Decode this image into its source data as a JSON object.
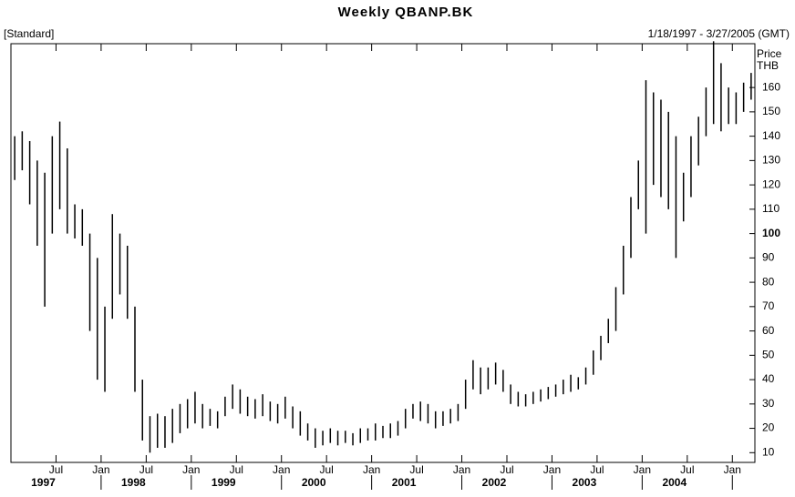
{
  "chart_data": {
    "type": "hl",
    "title": "Weekly QBANP.BK",
    "subtitle": "[Standard]",
    "date_range": "1/18/1997 - 3/27/2005 (GMT)",
    "y_label_1": "Price",
    "y_label_2": "THB",
    "color": "#000000",
    "x": [
      "1997-01",
      "1997-02",
      "1997-03",
      "1997-04",
      "1997-05",
      "1997-06",
      "1997-07",
      "1997-08",
      "1997-09",
      "1997-10",
      "1997-11",
      "1997-12",
      "1998-01",
      "1998-02",
      "1998-03",
      "1998-04",
      "1998-05",
      "1998-06",
      "1998-07",
      "1998-08",
      "1998-09",
      "1998-10",
      "1998-11",
      "1998-12",
      "1999-01",
      "1999-02",
      "1999-03",
      "1999-04",
      "1999-05",
      "1999-06",
      "1999-07",
      "1999-08",
      "1999-09",
      "1999-10",
      "1999-11",
      "1999-12",
      "2000-01",
      "2000-02",
      "2000-03",
      "2000-04",
      "2000-05",
      "2000-06",
      "2000-07",
      "2000-08",
      "2000-09",
      "2000-10",
      "2000-11",
      "2000-12",
      "2001-01",
      "2001-02",
      "2001-03",
      "2001-04",
      "2001-05",
      "2001-06",
      "2001-07",
      "2001-08",
      "2001-09",
      "2001-10",
      "2001-11",
      "2001-12",
      "2002-01",
      "2002-02",
      "2002-03",
      "2002-04",
      "2002-05",
      "2002-06",
      "2002-07",
      "2002-08",
      "2002-09",
      "2002-10",
      "2002-11",
      "2002-12",
      "2003-01",
      "2003-02",
      "2003-03",
      "2003-04",
      "2003-05",
      "2003-06",
      "2003-07",
      "2003-08",
      "2003-09",
      "2003-10",
      "2003-11",
      "2003-12",
      "2004-01",
      "2004-02",
      "2004-03",
      "2004-04",
      "2004-05",
      "2004-06",
      "2004-07",
      "2004-08",
      "2004-09",
      "2004-10",
      "2004-11",
      "2004-12",
      "2005-01",
      "2005-02",
      "2005-03"
    ],
    "high": [
      140,
      142,
      138,
      130,
      125,
      140,
      146,
      135,
      112,
      110,
      100,
      90,
      70,
      108,
      100,
      95,
      70,
      40,
      25,
      26,
      25,
      28,
      30,
      32,
      35,
      30,
      28,
      27,
      33,
      38,
      36,
      33,
      32,
      34,
      31,
      30,
      33,
      29,
      27,
      22,
      20,
      19,
      20,
      19,
      19,
      18,
      20,
      20,
      22,
      21,
      22,
      23,
      28,
      30,
      31,
      30,
      27,
      27,
      28,
      30,
      40,
      48,
      45,
      45,
      47,
      44,
      38,
      35,
      34,
      35,
      36,
      37,
      38,
      40,
      42,
      41,
      45,
      52,
      58,
      65,
      78,
      95,
      115,
      130,
      163,
      158,
      155,
      150,
      140,
      125,
      140,
      148,
      160,
      179,
      170,
      160,
      158,
      162,
      166
    ],
    "low": [
      122,
      126,
      112,
      95,
      70,
      100,
      110,
      100,
      98,
      95,
      60,
      40,
      35,
      65,
      75,
      65,
      35,
      15,
      10,
      12,
      12,
      14,
      18,
      20,
      22,
      20,
      21,
      20,
      25,
      28,
      26,
      25,
      24,
      25,
      23,
      22,
      24,
      20,
      17,
      15,
      12,
      13,
      14,
      13,
      14,
      13,
      14,
      15,
      15,
      16,
      16,
      17,
      20,
      24,
      23,
      22,
      20,
      21,
      22,
      23,
      28,
      36,
      34,
      36,
      38,
      35,
      30,
      29,
      29,
      30,
      31,
      32,
      33,
      34,
      35,
      36,
      38,
      42,
      48,
      55,
      60,
      75,
      90,
      110,
      100,
      120,
      115,
      110,
      90,
      105,
      115,
      128,
      140,
      145,
      142,
      145,
      145,
      150,
      155
    ],
    "xlim": [
      "1997-01",
      "2005-04"
    ],
    "xticks": [
      {
        "value": "1997-07",
        "label": "Jul"
      },
      {
        "value": "1998-01",
        "label": "Jan"
      },
      {
        "value": "1998-07",
        "label": "Jul"
      },
      {
        "value": "1999-01",
        "label": "Jan"
      },
      {
        "value": "1999-07",
        "label": "Jul"
      },
      {
        "value": "2000-01",
        "label": "Jan"
      },
      {
        "value": "2000-07",
        "label": "Jul"
      },
      {
        "value": "2001-01",
        "label": "Jan"
      },
      {
        "value": "2001-07",
        "label": "Jul"
      },
      {
        "value": "2002-01",
        "label": "Jan"
      },
      {
        "value": "2002-07",
        "label": "Jul"
      },
      {
        "value": "2003-01",
        "label": "Jan"
      },
      {
        "value": "2003-07",
        "label": "Jul"
      },
      {
        "value": "2004-01",
        "label": "Jan"
      },
      {
        "value": "2004-07",
        "label": "Jul"
      },
      {
        "value": "2005-01",
        "label": "Jan"
      }
    ],
    "year_labels": [
      {
        "value": "1997-07",
        "label": "1997"
      },
      {
        "value": "1998-07",
        "label": "1998"
      },
      {
        "value": "1999-07",
        "label": "1999"
      },
      {
        "value": "2000-07",
        "label": "2000"
      },
      {
        "value": "2001-07",
        "label": "2001"
      },
      {
        "value": "2002-07",
        "label": "2002"
      },
      {
        "value": "2003-07",
        "label": "2003"
      },
      {
        "value": "2004-07",
        "label": "2004"
      }
    ],
    "ylim": [
      6,
      178
    ],
    "yticks": [
      10,
      20,
      30,
      40,
      50,
      60,
      70,
      80,
      90,
      100,
      110,
      120,
      130,
      140,
      150,
      160
    ],
    "bold_ytick": 100
  }
}
